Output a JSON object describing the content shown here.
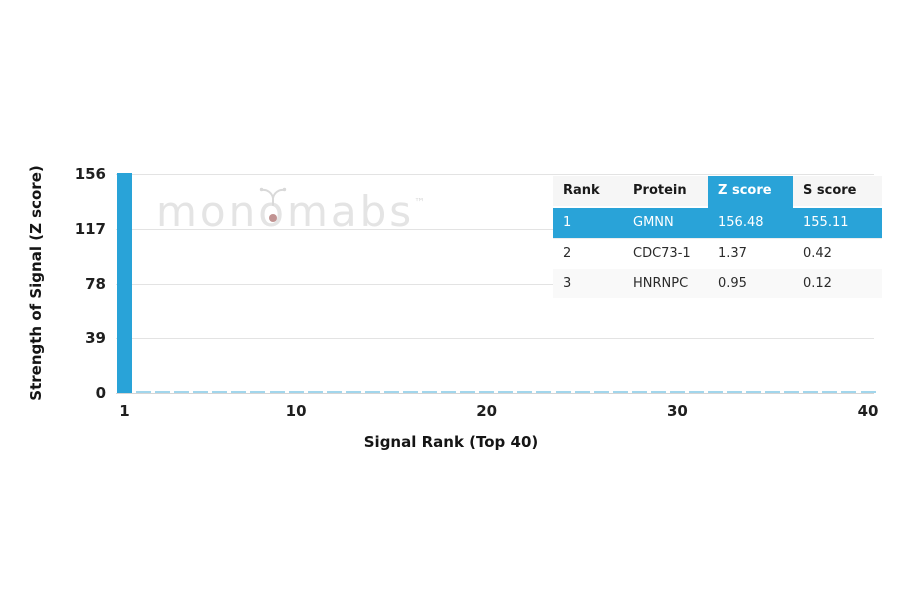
{
  "colors": {
    "accent": "#29a3d8",
    "small_bar": "#a2d6ec",
    "gridline": "#e3e3e3",
    "watermark_gray": "#e4e4e4",
    "watermark_dot": "#8e3b38"
  },
  "watermark": {
    "text_left": "mon",
    "o_char": "o",
    "text_right": "mabs",
    "tm": "™"
  },
  "chart_data": {
    "type": "bar",
    "title": "",
    "xlabel": "Signal Rank (Top 40)",
    "ylabel": "Strength of Signal (Z score)",
    "x_ticks": [
      1,
      10,
      20,
      30,
      40
    ],
    "y_ticks": [
      156,
      117,
      78,
      39,
      0
    ],
    "xlim": [
      1,
      40
    ],
    "ylim": [
      0,
      156
    ],
    "grid": "horizontal",
    "legend": "none",
    "series": [
      {
        "name": "Z score",
        "x": [
          1,
          2,
          3,
          4,
          5,
          6,
          7,
          8,
          9,
          10,
          11,
          12,
          13,
          14,
          15,
          16,
          17,
          18,
          19,
          20,
          21,
          22,
          23,
          24,
          25,
          26,
          27,
          28,
          29,
          30,
          31,
          32,
          33,
          34,
          35,
          36,
          37,
          38,
          39,
          40
        ],
        "values": [
          156.48,
          1.37,
          0.95,
          0.5,
          0.5,
          0.5,
          0.5,
          0.5,
          0.5,
          0.5,
          0.5,
          0.5,
          0.5,
          0.5,
          0.5,
          0.5,
          0.5,
          0.5,
          0.5,
          0.5,
          0.5,
          0.5,
          0.5,
          0.5,
          0.5,
          0.5,
          0.5,
          0.5,
          0.5,
          0.5,
          0.5,
          0.5,
          0.5,
          0.5,
          0.5,
          0.5,
          0.5,
          0.5,
          0.5,
          0.5
        ]
      }
    ]
  },
  "table": {
    "headers": [
      "Rank",
      "Protein",
      "Z score",
      "S score"
    ],
    "highlight_col": 2,
    "rows": [
      {
        "cells": [
          "1",
          "GMNN",
          "156.48",
          "155.11"
        ],
        "highlight": true
      },
      {
        "cells": [
          "2",
          "CDC73-1",
          "1.37",
          "0.42"
        ],
        "highlight": false
      },
      {
        "cells": [
          "3",
          "HNRNPC",
          "0.95",
          "0.12"
        ],
        "highlight": false
      }
    ]
  }
}
